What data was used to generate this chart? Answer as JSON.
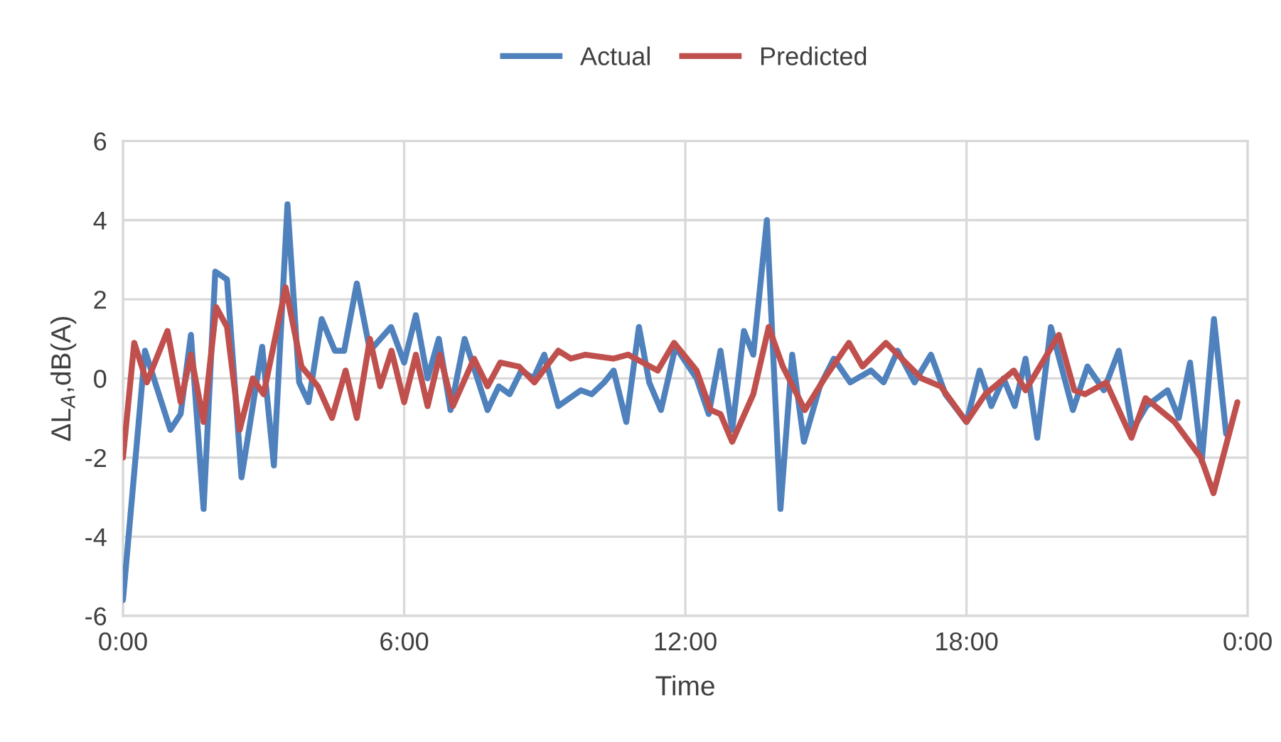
{
  "chart_data": {
    "type": "line",
    "xlabel": "Time",
    "ylabel": "ΔL$_{A}$,dB(A)",
    "xlim": [
      0,
      24
    ],
    "xticks": [
      {
        "value": 0,
        "label": "0:00"
      },
      {
        "value": 6,
        "label": "6:00"
      },
      {
        "value": 12,
        "label": "12:00"
      },
      {
        "value": 18,
        "label": "18:00"
      },
      {
        "value": 24,
        "label": "0:00"
      }
    ],
    "ylim": [
      -6,
      6
    ],
    "yticks": [
      -6,
      -4,
      -2,
      0,
      2,
      4,
      6
    ],
    "grid": true,
    "legend": "top",
    "line_style": "solid",
    "marker": "none",
    "series": [
      {
        "name": "Actual",
        "color": "#4f81bd",
        "x": [
          0,
          0.47,
          1.01,
          1.23,
          1.45,
          1.72,
          1.97,
          2.22,
          2.53,
          2.97,
          3.22,
          3.51,
          3.76,
          3.96,
          4.24,
          4.52,
          4.72,
          4.99,
          5.27,
          5.72,
          6.0,
          6.25,
          6.5,
          6.74,
          6.99,
          7.29,
          7.78,
          8.02,
          8.25,
          8.5,
          8.76,
          8.99,
          9.29,
          9.77,
          10.0,
          10.27,
          10.47,
          10.74,
          11.01,
          11.23,
          11.48,
          11.79,
          12.24,
          12.5,
          12.75,
          13.0,
          13.25,
          13.45,
          13.74,
          14.03,
          14.28,
          14.53,
          14.87,
          15.17,
          15.52,
          15.96,
          16.23,
          16.53,
          16.89,
          17.24,
          17.55,
          18.0,
          18.28,
          18.53,
          18.79,
          19.03,
          19.26,
          19.51,
          19.8,
          20.27,
          20.58,
          20.93,
          21.25,
          21.54,
          21.84,
          22.29,
          22.53,
          22.77,
          23.02,
          23.28,
          23.54
        ],
        "values": [
          -5.6,
          0.7,
          -1.3,
          -0.9,
          1.1,
          -3.3,
          2.7,
          2.5,
          -2.5,
          0.8,
          -2.2,
          4.4,
          -0.1,
          -0.6,
          1.5,
          0.7,
          0.7,
          2.4,
          0.7,
          1.3,
          0.4,
          1.6,
          0.0,
          1.0,
          -0.8,
          1.0,
          -0.8,
          -0.2,
          -0.4,
          0.2,
          0.0,
          0.6,
          -0.7,
          -0.3,
          -0.4,
          -0.1,
          0.2,
          -1.1,
          1.3,
          -0.1,
          -0.8,
          0.8,
          0.0,
          -0.9,
          0.7,
          -1.3,
          1.2,
          0.6,
          4.0,
          -3.3,
          0.6,
          -1.6,
          -0.2,
          0.5,
          -0.1,
          0.2,
          -0.1,
          0.7,
          -0.1,
          0.6,
          -0.4,
          -1.1,
          0.2,
          -0.7,
          0.0,
          -0.7,
          0.5,
          -1.5,
          1.3,
          -0.8,
          0.3,
          -0.3,
          0.7,
          -1.3,
          -0.7,
          -0.3,
          -1.0,
          0.4,
          -2.1,
          1.5,
          -1.4
        ]
      },
      {
        "name": "Predicted",
        "color": "#c0504d",
        "x": [
          0,
          0.24,
          0.51,
          0.95,
          1.23,
          1.45,
          1.72,
          1.99,
          2.22,
          2.49,
          2.77,
          3.0,
          3.47,
          3.81,
          4.16,
          4.46,
          4.75,
          4.99,
          5.27,
          5.49,
          5.73,
          6.0,
          6.25,
          6.5,
          6.76,
          7.04,
          7.49,
          7.78,
          8.05,
          8.45,
          8.78,
          9.29,
          9.56,
          9.87,
          10.47,
          10.78,
          11.41,
          11.76,
          12.24,
          12.54,
          12.75,
          13.0,
          13.45,
          13.78,
          14.08,
          14.55,
          14.97,
          15.49,
          15.78,
          16.28,
          17.04,
          17.45,
          18.0,
          18.4,
          19.01,
          19.26,
          19.97,
          20.3,
          20.53,
          20.98,
          21.52,
          21.82,
          22.44,
          23.0,
          23.27,
          23.78
        ],
        "values": [
          -2.0,
          0.9,
          -0.1,
          1.2,
          -0.6,
          0.6,
          -1.1,
          1.8,
          1.3,
          -1.3,
          0.0,
          -0.4,
          2.3,
          0.3,
          -0.2,
          -1.0,
          0.2,
          -1.0,
          1.0,
          -0.2,
          0.7,
          -0.6,
          0.6,
          -0.7,
          0.6,
          -0.7,
          0.5,
          -0.2,
          0.4,
          0.3,
          -0.1,
          0.7,
          0.5,
          0.6,
          0.5,
          0.6,
          0.2,
          0.9,
          0.2,
          -0.8,
          -0.9,
          -1.6,
          -0.4,
          1.3,
          0.3,
          -0.8,
          0.0,
          0.9,
          0.3,
          0.9,
          0.0,
          -0.2,
          -1.1,
          -0.4,
          0.2,
          -0.3,
          1.1,
          -0.3,
          -0.4,
          -0.1,
          -1.5,
          -0.5,
          -1.1,
          -2.0,
          -2.9,
          -0.6
        ]
      }
    ]
  }
}
